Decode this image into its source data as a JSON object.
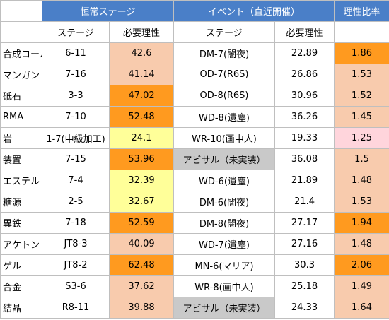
{
  "table": {
    "header": [
      "恒常ステージ",
      "イベント（直近開催）",
      "理性比率"
    ],
    "subheader": [
      "ステージ",
      "必要理性",
      "ステージ",
      "必要理性"
    ],
    "header_color": "#4a7fc8",
    "rows": [
      [
        "合成コール",
        "6-11",
        "42.6",
        "DM-7(闇夜)",
        "22.89",
        "1.86"
      ],
      [
        "マンガン",
        "7-16",
        "41.14",
        "OD-7(R6S)",
        "26.86",
        "1.53"
      ],
      [
        "砥石",
        "3-3",
        "47.02",
        "OD-8(R6S)",
        "30.96",
        "1.52"
      ],
      [
        "RMA",
        "7-10",
        "52.48",
        "WD-8(遺塵)",
        "36.26",
        "1.45"
      ],
      [
        "岩",
        "1-7(中級加工)",
        "24.1",
        "WR-10(画中人)",
        "19.33",
        "1.25"
      ],
      [
        "装置",
        "7-15",
        "53.96",
        "アビサル（未実装）",
        "36.08",
        "1.5"
      ],
      [
        "エステル",
        "7-4",
        "32.39",
        "WD-6(遺塵)",
        "21.89",
        "1.48"
      ],
      [
        "糖源",
        "2-5",
        "32.67",
        "DM-6(闇夜)",
        "21.4",
        "1.53"
      ],
      [
        "異鉄",
        "7-18",
        "52.59",
        "DM-8(闇夜)",
        "27.17",
        "1.94"
      ],
      [
        "アケトン",
        "JT8-3",
        "40.09",
        "WD-7(遺塵)",
        "27.16",
        "1.48"
      ],
      [
        "ゲル",
        "JT8-2",
        "62.48",
        "MN-6(マリア)",
        "30.3",
        "2.06"
      ],
      [
        "合金",
        "S3-6",
        "37.62",
        "WR-8(画中人)",
        "25.18",
        "1.49"
      ],
      [
        "結晶",
        "R8-11",
        "39.88",
        "アビサル（未実装）",
        "24.33",
        "1.64"
      ]
    ],
    "fills": [
      [
        "#ffffff",
        "#ffffff",
        "#f8cbad",
        "#ffffff",
        "#ffffff",
        "#ff9a1f"
      ],
      [
        "#ffffff",
        "#ffffff",
        "#f8cbad",
        "#ffffff",
        "#ffffff",
        "#f8cbad"
      ],
      [
        "#ffffff",
        "#ffffff",
        "#ff9a1f",
        "#ffffff",
        "#ffffff",
        "#f8cbad"
      ],
      [
        "#ffffff",
        "#ffffff",
        "#ff9a1f",
        "#ffffff",
        "#ffffff",
        "#f8cbad"
      ],
      [
        "#ffffff",
        "#ffffff",
        "#ffff99",
        "#ffffff",
        "#ffffff",
        "#ffd5dc"
      ],
      [
        "#ffffff",
        "#ffffff",
        "#ff9a1f",
        "#c9c9c9",
        "#ffffff",
        "#f8cbad"
      ],
      [
        "#ffffff",
        "#ffffff",
        "#ffff99",
        "#ffffff",
        "#ffffff",
        "#f8cbad"
      ],
      [
        "#ffffff",
        "#ffffff",
        "#ffff99",
        "#ffffff",
        "#ffffff",
        "#f8cbad"
      ],
      [
        "#ffffff",
        "#ffffff",
        "#ff9a1f",
        "#ffffff",
        "#ffffff",
        "#ff9a1f"
      ],
      [
        "#ffffff",
        "#ffffff",
        "#f8cbad",
        "#ffffff",
        "#ffffff",
        "#f8cbad"
      ],
      [
        "#ffffff",
        "#ffffff",
        "#ff9a1f",
        "#ffffff",
        "#ffffff",
        "#ff9a1f"
      ],
      [
        "#ffffff",
        "#ffffff",
        "#f8cbad",
        "#ffffff",
        "#ffffff",
        "#f8cbad"
      ],
      [
        "#ffffff",
        "#ffffff",
        "#f8cbad",
        "#c9c9c9",
        "#ffffff",
        "#f8cbad"
      ]
    ]
  }
}
